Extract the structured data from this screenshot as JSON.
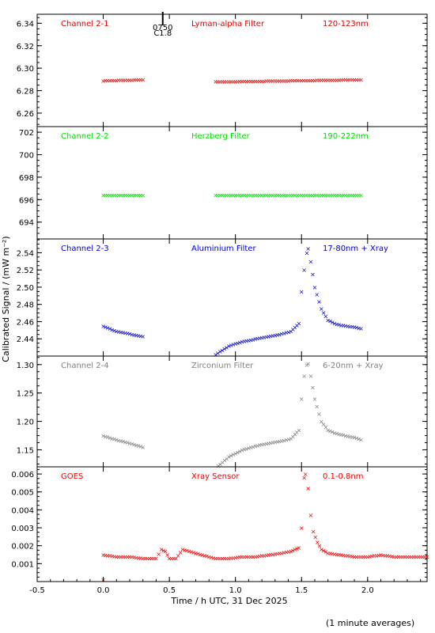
{
  "ylabel": "Calibrated Signal / (mW m⁻²)",
  "xlabel": "Time / h UTC, 31 Dec 2025",
  "footnote": "(1 minute averages)",
  "flare_marker": {
    "label_top": "0750",
    "label_bottom": "C1.8",
    "time_h": 0.45
  },
  "chart_data": [
    {
      "type": "scatter",
      "panel": "Channel 2-1",
      "labels": [
        "Channel 2-1",
        "Lyman-alpha Filter",
        "120-123nm"
      ],
      "color": "#dd0000",
      "xlim": [
        -0.5,
        2.45
      ],
      "ylim": [
        6.248,
        6.348
      ],
      "yticks": [
        6.26,
        6.28,
        6.3,
        6.32,
        6.34
      ],
      "ytick_labels": [
        "6.26",
        "6.28",
        "6.30",
        "6.32",
        "6.34"
      ],
      "series": [
        {
          "x": [
            0.0,
            0.3
          ],
          "y": [
            6.289,
            6.29
          ]
        },
        {
          "x": [
            0.85,
            1.95
          ],
          "y": [
            6.288,
            6.29
          ]
        }
      ]
    },
    {
      "type": "scatter",
      "panel": "Channel 2-2",
      "labels": [
        "Channel 2-2",
        "Herzberg Filter",
        "190-222nm"
      ],
      "color": "#00dd00",
      "xlim": [
        -0.5,
        2.45
      ],
      "ylim": [
        692.5,
        702.5
      ],
      "yticks": [
        694,
        696,
        698,
        700,
        702
      ],
      "ytick_labels": [
        "694",
        "696",
        "698",
        "700",
        "702"
      ],
      "series": [
        {
          "x": [
            0.0,
            0.3
          ],
          "y": [
            696.4,
            696.4
          ]
        },
        {
          "x": [
            0.85,
            1.95
          ],
          "y": [
            696.4,
            696.4
          ]
        }
      ]
    },
    {
      "type": "scatter",
      "panel": "Channel 2-3",
      "labels": [
        "Channel 2-3",
        "Aluminium Filter",
        "17-80nm + Xray"
      ],
      "color": "#0000cc",
      "xlim": [
        -0.5,
        2.45
      ],
      "ylim": [
        2.42,
        2.556
      ],
      "yticks": [
        2.44,
        2.46,
        2.48,
        2.5,
        2.52,
        2.54
      ],
      "ytick_labels": [
        "2.44",
        "2.46",
        "2.48",
        "2.50",
        "2.52",
        "2.54"
      ],
      "series": [
        {
          "x": [
            0.0,
            0.1,
            0.2,
            0.3
          ],
          "y": [
            2.455,
            2.449,
            2.446,
            2.443
          ]
        },
        {
          "x": [
            0.85,
            0.95,
            1.05,
            1.15,
            1.25,
            1.35,
            1.42,
            1.48,
            1.5,
            1.52,
            1.54,
            1.55,
            1.57,
            1.6,
            1.65,
            1.7,
            1.75,
            1.8,
            1.9,
            1.95
          ],
          "y": [
            2.422,
            2.432,
            2.437,
            2.44,
            2.443,
            2.446,
            2.449,
            2.458,
            2.495,
            2.52,
            2.54,
            2.545,
            2.53,
            2.5,
            2.475,
            2.462,
            2.458,
            2.456,
            2.454,
            2.452
          ]
        }
      ]
    },
    {
      "type": "scatter",
      "panel": "Channel 2-4",
      "labels": [
        "Channel 2-4",
        "Zirconium Filter",
        "6-20nm + Xray"
      ],
      "color": "#808080",
      "xlim": [
        -0.5,
        2.45
      ],
      "ylim": [
        1.12,
        1.315
      ],
      "yticks": [
        1.15,
        1.2,
        1.25,
        1.3
      ],
      "ytick_labels": [
        "1.15",
        "1.20",
        "1.25",
        "1.30"
      ],
      "series": [
        {
          "x": [
            0.0,
            0.1,
            0.2,
            0.3
          ],
          "y": [
            1.175,
            1.168,
            1.162,
            1.155
          ]
        },
        {
          "x": [
            0.87,
            0.95,
            1.05,
            1.15,
            1.25,
            1.35,
            1.42,
            1.48,
            1.5,
            1.52,
            1.54,
            1.55,
            1.57,
            1.6,
            1.65,
            1.7,
            1.75,
            1.8,
            1.9,
            1.95
          ],
          "y": [
            1.122,
            1.138,
            1.15,
            1.157,
            1.162,
            1.166,
            1.17,
            1.185,
            1.24,
            1.28,
            1.3,
            1.302,
            1.28,
            1.24,
            1.2,
            1.185,
            1.18,
            1.177,
            1.172,
            1.168
          ]
        }
      ]
    },
    {
      "type": "scatter",
      "panel": "GOES",
      "labels": [
        "GOES",
        "Xray Sensor",
        "0.1-0.8nm"
      ],
      "color": "#ee0000",
      "xlim": [
        -0.5,
        2.45
      ],
      "ylim": [
        0.0,
        0.0064
      ],
      "yticks": [
        0.001,
        0.002,
        0.003,
        0.004,
        0.005,
        0.006
      ],
      "ytick_labels": [
        "0.001",
        "0.002",
        "0.003",
        "0.004",
        "0.005",
        "0.006"
      ],
      "series": [
        {
          "x": [
            0.0
          ],
          "y": [
            0.0001
          ]
        },
        {
          "x": [
            0.0,
            0.1,
            0.2,
            0.3,
            0.4,
            0.44,
            0.47,
            0.5,
            0.55,
            0.6,
            0.65,
            0.75,
            0.85,
            0.95,
            1.05,
            1.15,
            1.25,
            1.35,
            1.42,
            1.48,
            1.5,
            1.52,
            1.53,
            1.55,
            1.57,
            1.59,
            1.62,
            1.65,
            1.7,
            1.8,
            1.9,
            2.0,
            2.1,
            2.2,
            2.3,
            2.4,
            2.45
          ],
          "y": [
            0.0015,
            0.0014,
            0.0014,
            0.0013,
            0.0013,
            0.0018,
            0.0017,
            0.0013,
            0.0013,
            0.0018,
            0.0017,
            0.0015,
            0.0013,
            0.0013,
            0.0014,
            0.0014,
            0.0015,
            0.0016,
            0.0017,
            0.0019,
            0.003,
            0.0058,
            0.006,
            0.0052,
            0.0037,
            0.0028,
            0.0022,
            0.0018,
            0.0016,
            0.0015,
            0.0014,
            0.0014,
            0.0015,
            0.0014,
            0.0014,
            0.0014,
            0.0014
          ]
        }
      ]
    }
  ],
  "xaxis": {
    "ticks": [
      -0.5,
      0.0,
      0.5,
      1.0,
      1.5,
      2.0
    ],
    "tick_labels": [
      "-0.5",
      "0.0",
      "0.5",
      "1.0",
      "1.5",
      "2.0"
    ]
  }
}
